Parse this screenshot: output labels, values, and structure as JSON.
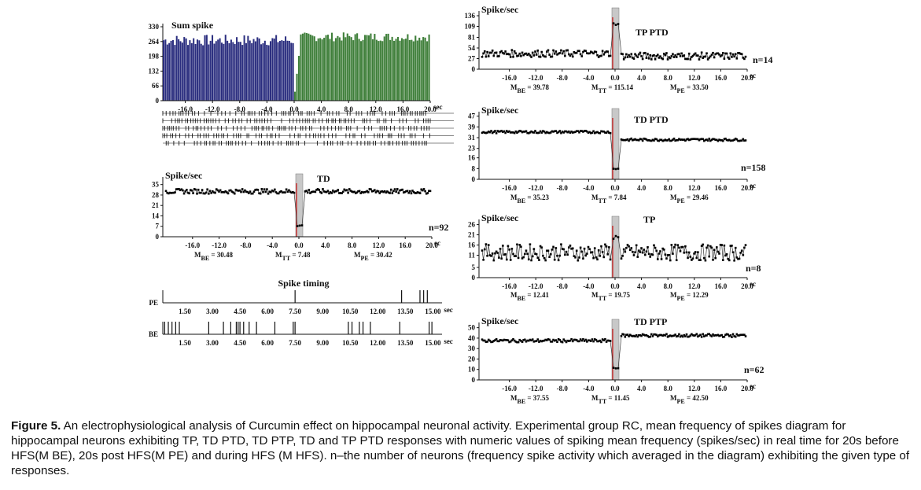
{
  "caption": {
    "label": "Figure 5.",
    "text": " An electrophysiological analysis of Curcumin effect on hippocampal neuronal activity. Experimental group RC, mean frequency of spikes diagram for hippocampal neurons exhibiting TP, TD PTD, TD PTP, TD and TP PTD responses with numeric values of spiking mean frequency (spikes/sec) in real time for 20s before HFS(M BE), 20s post HFS(M PE) and during HFS (M HFS). n–the number of neurons (frequency spike activity which averaged in the diagram) exhibiting the given type of responses."
  },
  "colors": {
    "before": "#2b2e7f",
    "after": "#3f7f3a",
    "stim": "#c8c8c8",
    "stim_line": "#cc2222"
  },
  "chart_data": [
    {
      "id": "sum",
      "type": "bar",
      "title": "Sum spike",
      "yticks": [
        0,
        66,
        132,
        198,
        264,
        330
      ],
      "xticks": [
        "-16.0",
        "-12.0",
        "-8.0",
        "-4.0",
        "0.0",
        "4.0",
        "8.0",
        "12.0",
        "16.0",
        "20.0"
      ],
      "x_unit": "sec",
      "xlim": [
        -20,
        20
      ],
      "ylim": [
        0,
        330
      ],
      "before_mean": 270,
      "after_mean": 285,
      "raster_rows": 5
    },
    {
      "id": "td",
      "type": "line",
      "title": "TD",
      "ylabel": "Spike/sec",
      "yticks": [
        0,
        7,
        14,
        21,
        28,
        35
      ],
      "ylim": [
        0,
        38
      ],
      "xticks": [
        "-16.0",
        "-12.0",
        "-8.0",
        "-4.0",
        "0.0",
        "4.0",
        "8.0",
        "12.0",
        "16.0",
        "20.0"
      ],
      "x_unit": "ec",
      "xlim": [
        -20,
        20
      ],
      "n": "n=92",
      "M_BE": "30.48",
      "M_TT": "7.48",
      "M_PE": "30.42",
      "be": 30.48,
      "tt": 7.48,
      "pe": 30.42,
      "noise": 1.6
    },
    {
      "id": "tpptd",
      "type": "line",
      "title": "TP PTD",
      "ylabel": "Spike/sec",
      "yticks": [
        0,
        27,
        54,
        81,
        109,
        136
      ],
      "ylim": [
        0,
        140
      ],
      "xticks": [
        "-16.0",
        "-12.0",
        "-8.0",
        "-4.0",
        "0.0",
        "4.0",
        "8.0",
        "12.0",
        "16.0",
        "20.0"
      ],
      "x_unit": "ec",
      "xlim": [
        -20,
        20
      ],
      "n": "n=14",
      "M_BE": "39.78",
      "M_TT": "115.14",
      "M_PE": "33.50",
      "be": 39.78,
      "tt": 115.14,
      "pe": 33.5,
      "noise": 9
    },
    {
      "id": "tdptd",
      "type": "line",
      "title": "TD PTD",
      "ylabel": "Spike/sec",
      "yticks": [
        0,
        8,
        16,
        23,
        31,
        39,
        47
      ],
      "ylim": [
        0,
        48
      ],
      "xticks": [
        "-16.0",
        "-12.0",
        "-8.0",
        "-4.0",
        "0.0",
        "4.0",
        "8.0",
        "12.0",
        "16.0",
        "20.0"
      ],
      "x_unit": "ec",
      "xlim": [
        -20,
        20
      ],
      "n": "n=158",
      "M_BE": "35.23",
      "M_TT": "7.84",
      "M_PE": "29.46",
      "be": 35.23,
      "tt": 7.84,
      "pe": 29.46,
      "noise": 0.9
    },
    {
      "id": "tp",
      "type": "line",
      "title": "TP",
      "ylabel": "Spike/sec",
      "yticks": [
        0,
        5,
        11,
        16,
        21,
        26
      ],
      "ylim": [
        0,
        27
      ],
      "xticks": [
        "-16.0",
        "-12.0",
        "-8.0",
        "-4.0",
        "0.0",
        "4.0",
        "8.0",
        "12.0",
        "16.0",
        "20.0"
      ],
      "x_unit": "ec",
      "xlim": [
        -20,
        20
      ],
      "n": "n=8",
      "M_BE": "12.41",
      "M_TT": "19.75",
      "M_PE": "12.29",
      "be": 12.41,
      "tt": 19.75,
      "pe": 12.29,
      "noise": 4
    },
    {
      "id": "tdptp",
      "type": "line",
      "title": "TD PTP",
      "ylabel": "Spike/sec",
      "yticks": [
        0,
        10,
        20,
        30,
        40,
        50
      ],
      "ylim": [
        0,
        52
      ],
      "xticks": [
        "-16.0",
        "-12.0",
        "-8.0",
        "-4.0",
        "0.0",
        "4.0",
        "8.0",
        "12.0",
        "16.0",
        "20.0"
      ],
      "x_unit": "ec",
      "xlim": [
        -20,
        20
      ],
      "n": "n=62",
      "M_BE": "37.55",
      "M_TT": "11.45",
      "M_PE": "42.50",
      "be": 37.55,
      "tt": 11.45,
      "pe": 42.5,
      "noise": 1.5
    },
    {
      "id": "timing",
      "type": "scatter",
      "title": "Spike timing",
      "rows": [
        "PE",
        "BE"
      ],
      "xticks": [
        "1.50",
        "3.00",
        "4.50",
        "6.00",
        "7.50",
        "9.00",
        "10.50",
        "12.00",
        "13.50",
        "15.00"
      ],
      "x_unit": "sec",
      "pe_spikes": [
        7.5,
        13.3,
        14.3,
        14.5,
        14.7
      ],
      "be_spikes": [
        0.4,
        0.6,
        0.8,
        1.0,
        1.2,
        2.8,
        3.6,
        4.0,
        4.3,
        4.4,
        4.5,
        4.7,
        5.0,
        5.4,
        6.4,
        7.4,
        7.5,
        10.4,
        10.6,
        11.0,
        11.2,
        11.6,
        13.2,
        14.8,
        14.95
      ]
    }
  ]
}
